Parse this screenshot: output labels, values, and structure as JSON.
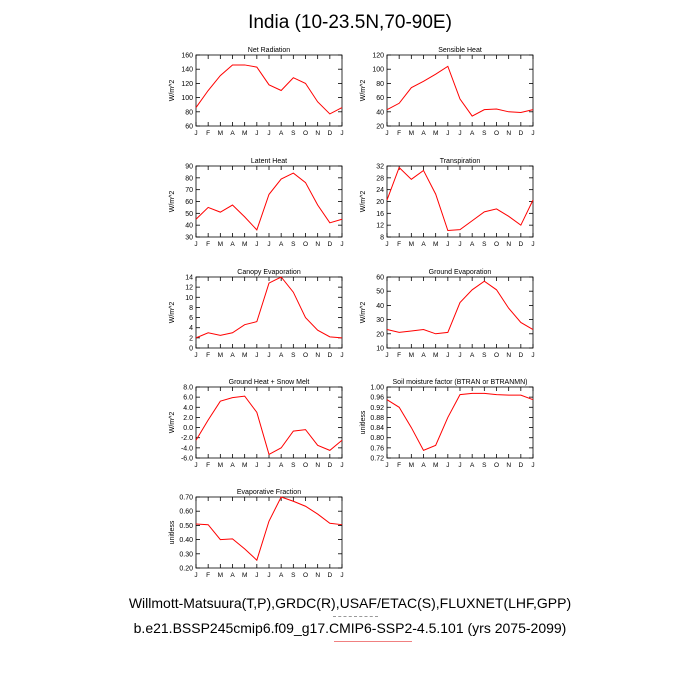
{
  "page": {
    "title": "India (10-23.5N,70-90E)",
    "footer_line1": "Willmott-Matsuura(T,P),GRDC(R),USAF/ETAC(S),FLUXNET(LHF,GPP)",
    "footer_line2": "b.e21.BSSP245cmip6.f09_g17.CMIP6-SSP2-4.5.101 (yrs 2075-2099)"
  },
  "colors": {
    "line": "#ff0000",
    "axis": "#000000"
  },
  "chart_data": [
    {
      "type": "line",
      "title": "Net Radiation",
      "ylabel": "W/m^2",
      "x": [
        "J",
        "F",
        "M",
        "A",
        "M",
        "J",
        "J",
        "A",
        "S",
        "O",
        "N",
        "D",
        "J"
      ],
      "ylim": [
        60,
        160
      ],
      "yticks": [
        60,
        80,
        100,
        120,
        140,
        160
      ],
      "yticklabels": [
        "60",
        "80",
        "100",
        "120",
        "140",
        "160"
      ],
      "series": [
        {
          "values": [
            86,
            110,
            131,
            146,
            146,
            143,
            118,
            110,
            128,
            120,
            94,
            77,
            86
          ]
        }
      ]
    },
    {
      "type": "line",
      "title": "Sensible Heat",
      "ylabel": "W/m^2",
      "x": [
        "J",
        "F",
        "M",
        "A",
        "M",
        "J",
        "J",
        "A",
        "S",
        "O",
        "N",
        "D",
        "J"
      ],
      "ylim": [
        20,
        120
      ],
      "yticks": [
        20,
        40,
        60,
        80,
        100,
        120
      ],
      "yticklabels": [
        "20",
        "40",
        "60",
        "80",
        "100",
        "120"
      ],
      "series": [
        {
          "values": [
            43,
            52,
            74,
            83,
            93,
            104,
            58,
            34,
            43,
            44,
            40,
            39,
            43
          ]
        }
      ]
    },
    {
      "type": "line",
      "title": "Latent Heat",
      "ylabel": "W/m^2",
      "x": [
        "J",
        "F",
        "M",
        "A",
        "M",
        "J",
        "J",
        "A",
        "S",
        "O",
        "N",
        "D",
        "J"
      ],
      "ylim": [
        30,
        90
      ],
      "yticks": [
        30,
        40,
        50,
        60,
        70,
        80,
        90
      ],
      "yticklabels": [
        "30",
        "40",
        "50",
        "60",
        "70",
        "80",
        "90"
      ],
      "series": [
        {
          "values": [
            45,
            55,
            51,
            57,
            47,
            36,
            66,
            79,
            84,
            76,
            57,
            42,
            45
          ]
        }
      ]
    },
    {
      "type": "line",
      "title": "Transpiration",
      "ylabel": "W/m^2",
      "x": [
        "J",
        "F",
        "M",
        "A",
        "M",
        "J",
        "J",
        "A",
        "S",
        "O",
        "N",
        "D",
        "J"
      ],
      "ylim": [
        8,
        32
      ],
      "yticks": [
        8,
        12,
        16,
        20,
        24,
        28,
        32
      ],
      "yticklabels": [
        "8",
        "12",
        "16",
        "20",
        "24",
        "28",
        "32"
      ],
      "series": [
        {
          "values": [
            20.5,
            31.5,
            27.5,
            30.5,
            22.5,
            10.2,
            10.5,
            13.5,
            16.5,
            17.5,
            15,
            12,
            20.5
          ]
        }
      ]
    },
    {
      "type": "line",
      "title": "Canopy Evaporation",
      "ylabel": "W/m^2",
      "x": [
        "J",
        "F",
        "M",
        "A",
        "M",
        "J",
        "J",
        "A",
        "S",
        "O",
        "N",
        "D",
        "J"
      ],
      "ylim": [
        0,
        14
      ],
      "yticks": [
        0,
        2,
        4,
        6,
        8,
        10,
        12,
        14
      ],
      "yticklabels": [
        "0",
        "2",
        "4",
        "6",
        "8",
        "10",
        "12",
        "14"
      ],
      "series": [
        {
          "values": [
            2,
            3,
            2.5,
            3,
            4.6,
            5.2,
            12.8,
            14,
            11,
            6,
            3.5,
            2.2,
            2
          ]
        }
      ]
    },
    {
      "type": "line",
      "title": "Ground Evaporation",
      "ylabel": "W/m^2",
      "x": [
        "J",
        "F",
        "M",
        "A",
        "M",
        "J",
        "J",
        "A",
        "S",
        "O",
        "N",
        "D",
        "J"
      ],
      "ylim": [
        10,
        60
      ],
      "yticks": [
        10,
        20,
        30,
        40,
        50,
        60
      ],
      "yticklabels": [
        "10",
        "20",
        "30",
        "40",
        "50",
        "60"
      ],
      "series": [
        {
          "values": [
            23,
            21,
            22,
            23,
            20,
            21,
            42,
            51,
            57,
            51,
            38,
            28,
            23
          ]
        }
      ]
    },
    {
      "type": "line",
      "title": "Ground Heat + Snow Melt",
      "ylabel": "W/m^2",
      "x": [
        "J",
        "F",
        "M",
        "A",
        "M",
        "J",
        "J",
        "A",
        "S",
        "O",
        "N",
        "D",
        "J"
      ],
      "ylim": [
        -6,
        8
      ],
      "yticks": [
        -6,
        -4,
        -2,
        0,
        2,
        4,
        6,
        8
      ],
      "yticklabels": [
        "-6.0",
        "-4.0",
        "-2.0",
        "0.0",
        "2.0",
        "4.0",
        "6.0",
        "8.0"
      ],
      "series": [
        {
          "values": [
            -2.5,
            1.5,
            5.2,
            5.9,
            6.2,
            3,
            -5.3,
            -4,
            -0.7,
            -0.4,
            -3.5,
            -4.5,
            -2.5
          ]
        }
      ]
    },
    {
      "type": "line",
      "title": "Soil moisture factor (BTRAN or BTRANMN)",
      "ylabel": "unitless",
      "x": [
        "J",
        "F",
        "M",
        "A",
        "M",
        "J",
        "J",
        "A",
        "S",
        "O",
        "N",
        "D",
        "J"
      ],
      "ylim": [
        0.72,
        1.0
      ],
      "yticks": [
        0.72,
        0.76,
        0.8,
        0.84,
        0.88,
        0.92,
        0.96,
        1.0
      ],
      "yticklabels": [
        "0.72",
        "0.76",
        "0.80",
        "0.84",
        "0.88",
        "0.92",
        "0.96",
        "1.00"
      ],
      "series": [
        {
          "values": [
            0.95,
            0.92,
            0.84,
            0.75,
            0.77,
            0.88,
            0.97,
            0.975,
            0.975,
            0.97,
            0.968,
            0.968,
            0.95
          ]
        }
      ]
    },
    {
      "type": "line",
      "title": "Evaporative Fraction",
      "ylabel": "unitless",
      "x": [
        "J",
        "F",
        "M",
        "A",
        "M",
        "J",
        "J",
        "A",
        "S",
        "O",
        "N",
        "D",
        "J"
      ],
      "ylim": [
        0.2,
        0.7
      ],
      "yticks": [
        0.2,
        0.3,
        0.4,
        0.5,
        0.6,
        0.7
      ],
      "yticklabels": [
        "0.20",
        "0.30",
        "0.40",
        "0.50",
        "0.60",
        "0.70"
      ],
      "series": [
        {
          "values": [
            0.51,
            0.505,
            0.4,
            0.405,
            0.335,
            0.255,
            0.53,
            0.7,
            0.67,
            0.635,
            0.58,
            0.515,
            0.505
          ]
        }
      ]
    }
  ]
}
